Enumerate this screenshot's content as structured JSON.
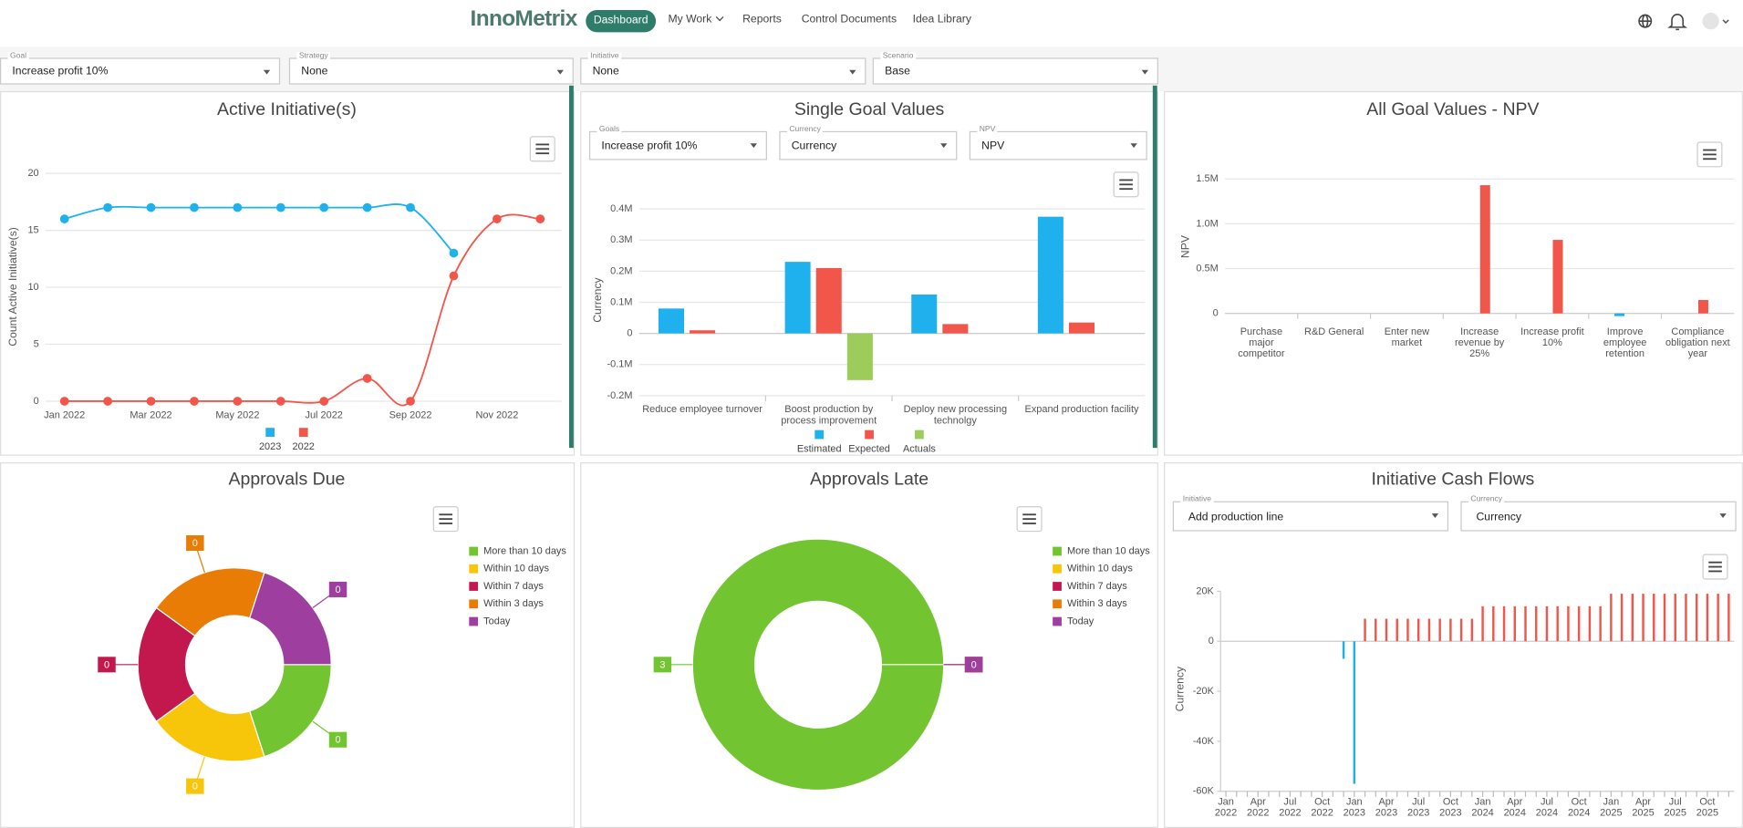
{
  "nav": {
    "brand": "InnoMetrix",
    "items": [
      "Dashboard",
      "My Work",
      "Reports",
      "Control Documents",
      "Idea Library"
    ]
  },
  "filters": [
    {
      "label": "Goal",
      "value": "Increase profit 10%"
    },
    {
      "label": "Strategy",
      "value": "None"
    },
    {
      "label": "Initiative",
      "value": "None"
    },
    {
      "label": "Scenario",
      "value": "Base"
    }
  ],
  "panels": [
    {
      "chart_data": {
        "type": "line",
        "title": "Active Initiative(s)",
        "ylabel": "Count Active Initiative(s)",
        "categories": [
          "Jan 2022",
          null,
          "Mar 2022",
          null,
          "May 2022",
          null,
          "Jul 2022",
          null,
          "Sep 2022",
          null,
          "Nov 2022",
          null
        ],
        "series": [
          {
            "name": "2023",
            "color": "#1fb0ee",
            "values": [
              16,
              17,
              17,
              17,
              17,
              17,
              17,
              17,
              17,
              13,
              null,
              null
            ]
          },
          {
            "name": "2022",
            "color": "#f2564a",
            "values": [
              0,
              0,
              0,
              0,
              0,
              0,
              0,
              2,
              0,
              11,
              16,
              16
            ]
          }
        ],
        "ylim": [
          0,
          20
        ],
        "yticks": [
          0,
          5,
          10,
          15,
          20
        ],
        "grid": true,
        "legend": "bottom"
      }
    },
    {
      "controls": [
        {
          "label": "Goals",
          "value": "Increase profit 10%"
        },
        {
          "label": "Currency",
          "value": "Currency"
        },
        {
          "label": "NPV",
          "value": "NPV"
        }
      ],
      "chart_data": {
        "type": "bar",
        "title": "Single Goal Values",
        "ylabel": "Currency",
        "categories": [
          "Reduce employee turnover",
          "Boost production by process improvement",
          "Deploy new processing technolgy",
          "Expand production facility"
        ],
        "series": [
          {
            "name": "Estimated",
            "color": "#1fb0ee",
            "values": [
              80000,
              230000,
              125000,
              375000
            ]
          },
          {
            "name": "Expected",
            "color": "#f2564a",
            "values": [
              10000,
              210000,
              30000,
              35000
            ]
          },
          {
            "name": "Actuals",
            "color": "#9ccc5a",
            "values": [
              null,
              -150000,
              null,
              null
            ]
          }
        ],
        "ylim": [
          -200000,
          400000
        ],
        "yticks": [
          {
            "value": -200000,
            "label": "-0.2M"
          },
          {
            "value": -100000,
            "label": "-0.1M"
          },
          0,
          {
            "value": 100000,
            "label": "0.1M"
          },
          {
            "value": 200000,
            "label": "0.2M"
          },
          {
            "value": 300000,
            "label": "0.3M"
          },
          {
            "value": 400000,
            "label": "0.4M"
          }
        ],
        "grid": true,
        "legend": "bottom"
      }
    },
    {
      "chart_data": {
        "type": "bar",
        "title": "All Goal Values - NPV",
        "ylabel": "NPV",
        "categories": [
          "Purchase major competitor",
          "R&D General",
          "Enter new market",
          "Increase revenue by 25%",
          "Increase profit 10%",
          "Improve employee retention",
          "Compliance obligation next year"
        ],
        "series": [
          {
            "color": "#1fb0ee",
            "values": [
              null,
              null,
              null,
              null,
              null,
              -30000,
              null
            ]
          },
          {
            "color": "#f2564a",
            "values": [
              null,
              null,
              null,
              1430000,
              820000,
              null,
              150000
            ]
          }
        ],
        "ylim": [
          0,
          1500000
        ],
        "yticks": [
          0,
          {
            "value": 500000,
            "label": "0.5M"
          },
          {
            "value": 1000000,
            "label": "1.0M"
          },
          {
            "value": 1500000,
            "label": "1.5M"
          }
        ],
        "grid": true
      }
    },
    {
      "chart_data": {
        "type": "pie",
        "title": "Approvals Due",
        "categories": [
          "More than 10 days",
          "Within 10 days",
          "Within 7 days",
          "Within 3 days",
          "Today"
        ],
        "values": [
          0,
          0,
          0,
          0,
          0
        ],
        "colors": [
          "#72c530",
          "#f7c60a",
          "#c2184e",
          "#e87c05",
          "#9e3fa0"
        ],
        "legend": "right"
      }
    },
    {
      "chart_data": {
        "type": "pie",
        "title": "Approvals Late",
        "categories": [
          "More than 10 days",
          "Within 10 days",
          "Within 7 days",
          "Within 3 days",
          "Today"
        ],
        "values": [
          3,
          0,
          0,
          0,
          0
        ],
        "colors": [
          "#72c530",
          "#f7c60a",
          "#c2184e",
          "#e87c05",
          "#9e3fa0"
        ],
        "legend": "right"
      }
    },
    {
      "controls": [
        {
          "label": "Initiative",
          "value": "Add production line"
        },
        {
          "label": "Currency",
          "value": "Currency"
        }
      ],
      "chart_data": {
        "type": "bar",
        "title": "Initiative Cash Flows",
        "ylabel": "Currency",
        "categories": [
          "Jan 2022",
          null,
          null,
          "Apr 2022",
          null,
          null,
          "Jul 2022",
          null,
          null,
          "Oct 2022",
          null,
          null,
          "Jan 2023",
          null,
          null,
          "Apr 2023",
          null,
          null,
          "Jul 2023",
          null,
          null,
          "Oct 2023",
          null,
          null,
          "Jan 2024",
          null,
          null,
          "Apr 2024",
          null,
          null,
          "Jul 2024",
          null,
          null,
          "Oct 2024",
          null,
          null,
          "Jan 2025",
          null,
          null,
          "Apr 2025",
          null,
          null,
          "Jul 2025",
          null,
          null,
          "Oct 2025",
          null,
          null
        ],
        "series": [
          {
            "color": "#1fb0ee",
            "values": [
              null,
              null,
              null,
              null,
              null,
              null,
              null,
              null,
              null,
              null,
              null,
              -7000,
              -57000,
              null,
              null,
              null,
              null,
              null,
              null,
              null,
              null,
              null,
              null,
              null,
              null,
              null,
              null,
              null,
              null,
              null,
              null,
              null,
              null,
              null,
              null,
              null,
              null,
              null,
              null,
              null,
              null,
              null,
              null,
              null,
              null,
              null,
              null,
              null
            ]
          },
          {
            "color": "#f2564a",
            "values": [
              null,
              null,
              null,
              null,
              null,
              null,
              null,
              null,
              null,
              null,
              null,
              null,
              null,
              9000,
              9000,
              9000,
              9000,
              9000,
              9000,
              9000,
              9000,
              9000,
              9000,
              9000,
              14000,
              14000,
              14000,
              14000,
              14000,
              14000,
              14000,
              14000,
              14000,
              14000,
              14000,
              14000,
              19000,
              19000,
              19000,
              19000,
              19000,
              19000,
              19000,
              19000,
              19000,
              19000,
              19000,
              19000
            ]
          }
        ],
        "ylim": [
          -60000,
          20000
        ],
        "yticks": [
          {
            "value": -60000,
            "label": "-60K"
          },
          {
            "value": -40000,
            "label": "-40K"
          },
          {
            "value": -20000,
            "label": "-20K"
          },
          0,
          {
            "value": 20000,
            "label": "20K"
          }
        ],
        "grid": false
      }
    }
  ]
}
